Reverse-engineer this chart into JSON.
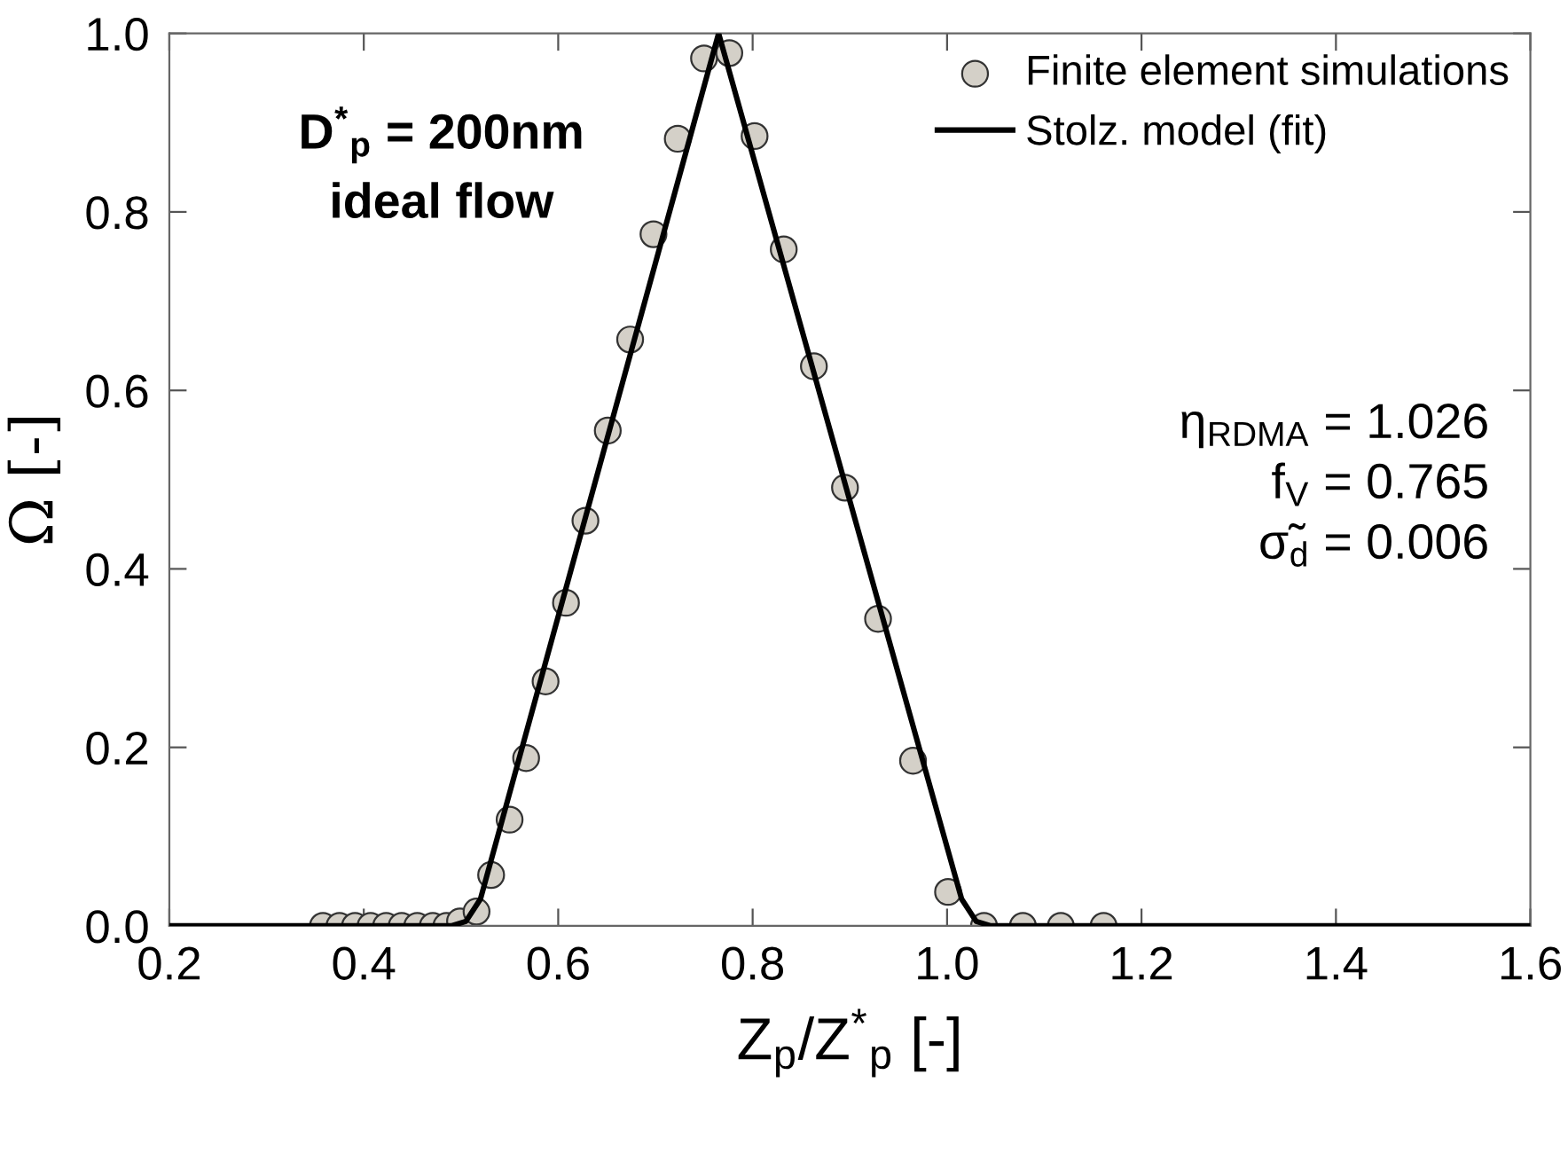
{
  "chart_data": {
    "type": "scatter",
    "xlabel": "Z$_{p}$/Z$^{*}$$_{p}$ [-]",
    "ylabel": "Ω [-]",
    "xlim": [
      0.2,
      1.6
    ],
    "xticks": [
      0.2,
      0.4,
      0.6,
      0.8,
      {
        "value": 1.0,
        "label": "1.0"
      },
      1.2,
      1.4,
      1.6
    ],
    "ylim": [
      0.0,
      1.0
    ],
    "yticks": [
      {
        "value": 0,
        "label": "0.0"
      },
      0.2,
      0.4,
      0.6,
      0.8,
      {
        "value": 1,
        "label": "1.0"
      }
    ],
    "grid": false,
    "legend": "top right",
    "series": [
      {
        "name": "Finite element simulations",
        "marker": "circle",
        "color": "#d4d0c8",
        "x": [
          0.358,
          0.375,
          0.391,
          0.407,
          0.423,
          0.439,
          0.455,
          0.471,
          0.485,
          0.499,
          0.516,
          0.531,
          0.55,
          0.567,
          0.587,
          0.608,
          0.628,
          0.651,
          0.674,
          0.698,
          0.723,
          0.75,
          0.776,
          0.802,
          0.832,
          0.863,
          0.895,
          0.929,
          0.965,
          1.001,
          1.038,
          1.078,
          1.117,
          1.161
        ],
        "values": [
          0,
          0,
          0,
          0,
          0,
          0,
          0,
          0,
          0,
          0.005,
          0.016,
          0.057,
          0.119,
          0.188,
          0.274,
          0.362,
          0.454,
          0.555,
          0.657,
          0.775,
          0.882,
          0.972,
          0.978,
          0.885,
          0.758,
          0.627,
          0.491,
          0.344,
          0.185,
          0.038,
          0,
          0,
          0,
          0
        ]
      },
      {
        "name": "Stolz. model (fit)",
        "type": "line",
        "marker": "none",
        "line_style": "solid",
        "color": "#000000",
        "x": [
          0.2,
          0.49,
          0.505,
          0.52,
          0.765,
          1.015,
          1.03,
          1.045,
          1.6
        ],
        "values": [
          0,
          0,
          0.005,
          0.03,
          1.0,
          0.03,
          0.005,
          0,
          0
        ]
      }
    ],
    "annotations": [
      "D$^{*}$$_{p}$ = 200nm\nideal flow",
      "η$_{RDMA}$ = 1.026\nf$_{V}$ = 0.765\nσ̃$_{d}$ = 0.006"
    ]
  }
}
